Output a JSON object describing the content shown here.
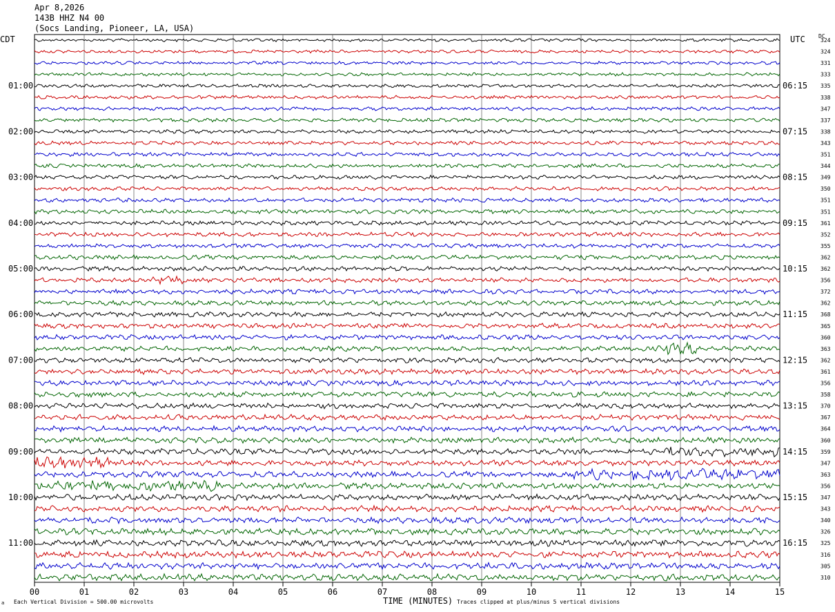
{
  "header": {
    "date": "Apr 8,2026",
    "station": "143B HHZ N4 00",
    "location": "(Socs Landing, Pioneer, LA, USA)"
  },
  "left_timezone": "CDT",
  "right_timezone": "UTC",
  "dc_label": "DC",
  "footer": {
    "vertical_division": "Each Vertical Division =  500.00 microvolts",
    "xlabel": "TIME (MINUTES)",
    "clipping": "Traces clipped at plus/minus 5 vertical divisions"
  },
  "colors": {
    "trace_cycle": [
      "#000000",
      "#cc0000",
      "#0000cc",
      "#006400"
    ],
    "grid": "#000000"
  },
  "chart_data": {
    "type": "line",
    "title": "143B HHZ N4 00",
    "xlabel": "TIME (MINUTES)",
    "xlim": [
      0,
      15
    ],
    "x_ticks": [
      "00",
      "01",
      "02",
      "03",
      "04",
      "05",
      "06",
      "07",
      "08",
      "09",
      "10",
      "11",
      "12",
      "13",
      "14",
      "15"
    ],
    "left_hour_labels": [
      "01:00",
      "02:00",
      "03:00",
      "04:00",
      "05:00",
      "06:00",
      "07:00",
      "08:00",
      "09:00",
      "10:00",
      "11:00"
    ],
    "right_hour_labels": [
      "06:15",
      "07:15",
      "08:15",
      "09:15",
      "10:15",
      "11:15",
      "12:15",
      "13:15",
      "14:15",
      "15:15",
      "16:15"
    ],
    "dc_offsets": [
      324,
      324,
      331,
      333,
      335,
      338,
      347,
      337,
      338,
      343,
      351,
      344,
      349,
      350,
      351,
      351,
      361,
      352,
      355,
      362,
      362,
      356,
      372,
      362,
      368,
      365,
      360,
      363,
      362,
      361,
      356,
      358,
      370,
      367,
      364,
      360,
      359,
      347,
      363,
      356,
      347,
      343,
      340,
      326,
      325,
      316,
      305,
      310
    ],
    "trace_minutes_per_line": 15,
    "trace_count": 48
  }
}
